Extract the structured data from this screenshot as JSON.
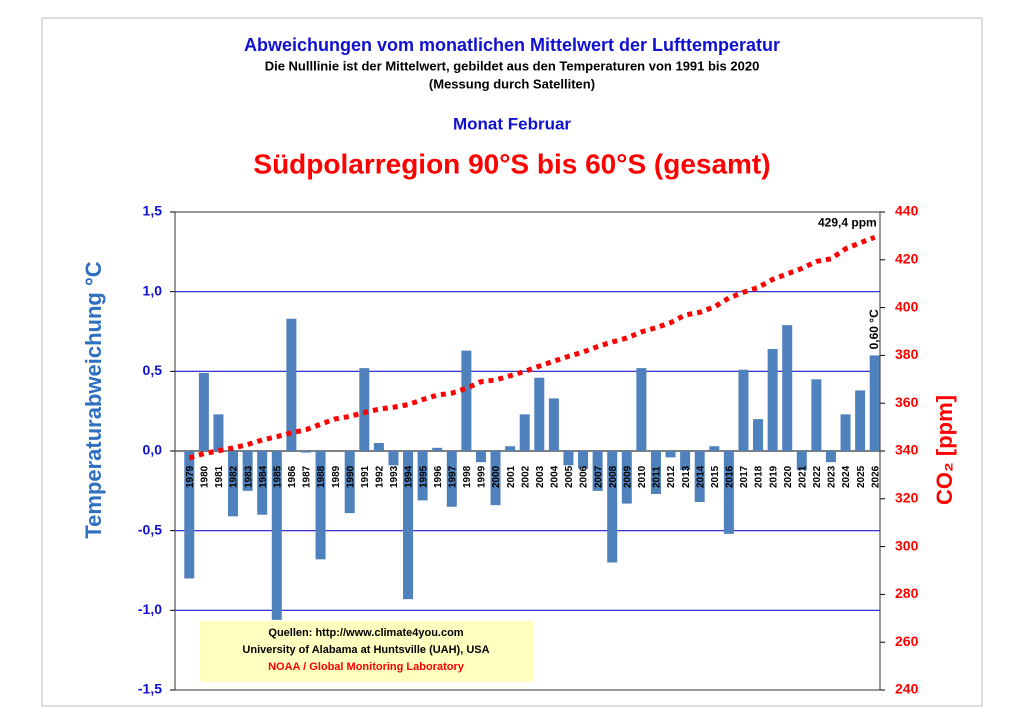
{
  "chart_data": {
    "type": "bar",
    "title": "Abweichungen vom monatlichen Mittelwert der Lufttemperatur",
    "subtitles": [
      "Die Nulllinie ist der Mittelwert, gebildet aus den Temperaturen von 1991 bis 2020",
      "(Messung durch Satelliten)"
    ],
    "month": "Monat Februar",
    "region": "Südpolarregion 90°S bis 60°S (gesamt)",
    "ylabel": "Temperaturabweichung °C",
    "y2label": "CO₂ [ppm]",
    "categories": [
      "1979",
      "1980",
      "1981",
      "1982",
      "1983",
      "1984",
      "1985",
      "1986",
      "1987",
      "1988",
      "1989",
      "1990",
      "1991",
      "1992",
      "1993",
      "1994",
      "1995",
      "1996",
      "1997",
      "1998",
      "1999",
      "2000",
      "2001",
      "2002",
      "2003",
      "2004",
      "2005",
      "2006",
      "2007",
      "2008",
      "2009",
      "2010",
      "2011",
      "2012",
      "2013",
      "2014",
      "2015",
      "2016",
      "2017",
      "2018",
      "2019",
      "2020",
      "2021",
      "2022",
      "2023",
      "2024",
      "2025",
      "2026"
    ],
    "series": [
      {
        "type": "bar",
        "color": "#4f81bd",
        "values": [
          -0.8,
          0.49,
          0.23,
          -0.41,
          -0.25,
          -0.4,
          -1.06,
          0.83,
          -0.01,
          -0.68,
          0.0,
          -0.39,
          0.52,
          0.05,
          -0.09,
          -0.93,
          -0.31,
          0.02,
          -0.35,
          0.63,
          -0.07,
          -0.34,
          0.03,
          0.23,
          0.46,
          0.33,
          -0.09,
          -0.11,
          -0.25,
          -0.7,
          -0.33,
          0.52,
          -0.27,
          -0.04,
          -0.12,
          -0.32,
          0.03,
          -0.52,
          0.51,
          0.2,
          0.64,
          0.79,
          -0.12,
          0.45,
          -0.07,
          0.23,
          0.38,
          0.6
        ],
        "value_labels": [
          null,
          null,
          null,
          null,
          null,
          null,
          null,
          null,
          null,
          null,
          null,
          null,
          null,
          null,
          null,
          null,
          null,
          null,
          null,
          null,
          null,
          null,
          null,
          null,
          null,
          null,
          null,
          null,
          null,
          null,
          null,
          null,
          null,
          null,
          null,
          null,
          null,
          null,
          null,
          null,
          null,
          null,
          null,
          null,
          null,
          null,
          null,
          "0,60 °C"
        ]
      },
      {
        "type": "line",
        "axis": "y2",
        "color": "#ff0000",
        "values": [
          337.1,
          338.9,
          340.1,
          341.3,
          342.7,
          344.6,
          346.0,
          347.6,
          348.9,
          351.2,
          353.4,
          354.5,
          356.1,
          357.5,
          358.3,
          359.4,
          361.5,
          363.4,
          364.2,
          366.2,
          369.0,
          369.7,
          371.5,
          373.3,
          375.5,
          377.6,
          379.6,
          381.4,
          383.7,
          385.6,
          387.3,
          389.8,
          391.6,
          393.7,
          396.9,
          398.0,
          400.3,
          404.0,
          406.4,
          408.4,
          411.8,
          414.1,
          416.4,
          419.3,
          420.4,
          424.6,
          427.1,
          429.4
        ],
        "value_labels": [
          null,
          null,
          null,
          null,
          null,
          null,
          null,
          null,
          null,
          null,
          null,
          null,
          null,
          null,
          null,
          null,
          null,
          null,
          null,
          null,
          null,
          null,
          null,
          null,
          null,
          null,
          null,
          null,
          null,
          null,
          null,
          null,
          null,
          null,
          null,
          null,
          null,
          null,
          null,
          null,
          null,
          null,
          null,
          null,
          null,
          null,
          null,
          "429,4 ppm"
        ]
      }
    ],
    "ylim": [
      -1.5,
      1.5
    ],
    "yticks": [
      {
        "value": -1.5,
        "label": "-1,5"
      },
      {
        "value": -1.0,
        "label": "-1,0"
      },
      {
        "value": -0.5,
        "label": "-0,5"
      },
      {
        "value": 0,
        "label": "0,0"
      },
      {
        "value": 0.5,
        "label": "0,5"
      },
      {
        "value": 1.0,
        "label": "1,0"
      },
      {
        "value": 1.5,
        "label": "1,5"
      }
    ],
    "y2lim": [
      240,
      440
    ],
    "y2ticks": [
      240,
      260,
      280,
      300,
      320,
      340,
      360,
      380,
      400,
      420,
      440
    ],
    "grid": true,
    "sources": [
      "Quellen: http://www.climate4you.com",
      "University of Alabama at Huntsville (UAH), USA",
      "NOAA / Global Monitoring Laboratory"
    ]
  }
}
